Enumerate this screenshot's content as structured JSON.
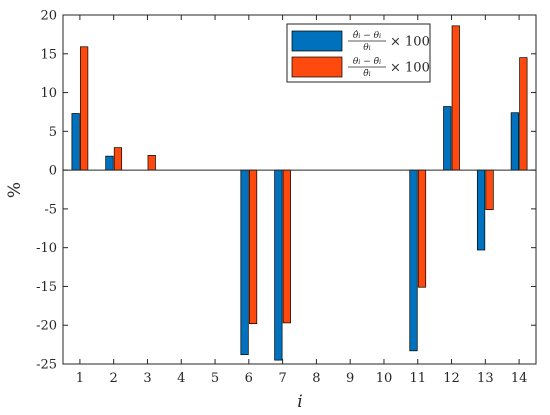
{
  "chart_data": {
    "type": "bar",
    "categories": [
      "1",
      "2",
      "3",
      "4",
      "5",
      "6",
      "7",
      "8",
      "9",
      "10",
      "11",
      "12",
      "13",
      "14"
    ],
    "series": [
      {
        "name": "(θ̂i − θi)/θi × 100",
        "name_parts": {
          "num_a": "θ̂",
          "num_b": "θ",
          "den": "θ",
          "sub": "i",
          "minus": "−",
          "times": "× 100"
        },
        "color": "#0072BD",
        "values": [
          7.3,
          1.8,
          0,
          0,
          0,
          -23.8,
          -24.5,
          0,
          0,
          0,
          -23.3,
          8.2,
          -10.3,
          7.4
        ]
      },
      {
        "name": "(θi − θ̄i)/θ̄i × 100",
        "name_parts": {
          "num_a": "θ",
          "num_b": "θ̄",
          "den": "θ̄",
          "sub": "i",
          "minus": "−",
          "times": "× 100"
        },
        "color": "#FF4A0F",
        "values": [
          15.9,
          2.9,
          1.9,
          0,
          0,
          -19.8,
          -19.7,
          0,
          0,
          0,
          -15.1,
          18.6,
          -5.1,
          14.5
        ]
      }
    ],
    "ylim": [
      -25,
      20
    ],
    "yticks": [
      -25,
      -20,
      -15,
      -10,
      -5,
      0,
      5,
      10,
      15,
      20
    ],
    "xlabel": "i",
    "ylabel": "%",
    "legend": "top-right",
    "grid": false
  }
}
